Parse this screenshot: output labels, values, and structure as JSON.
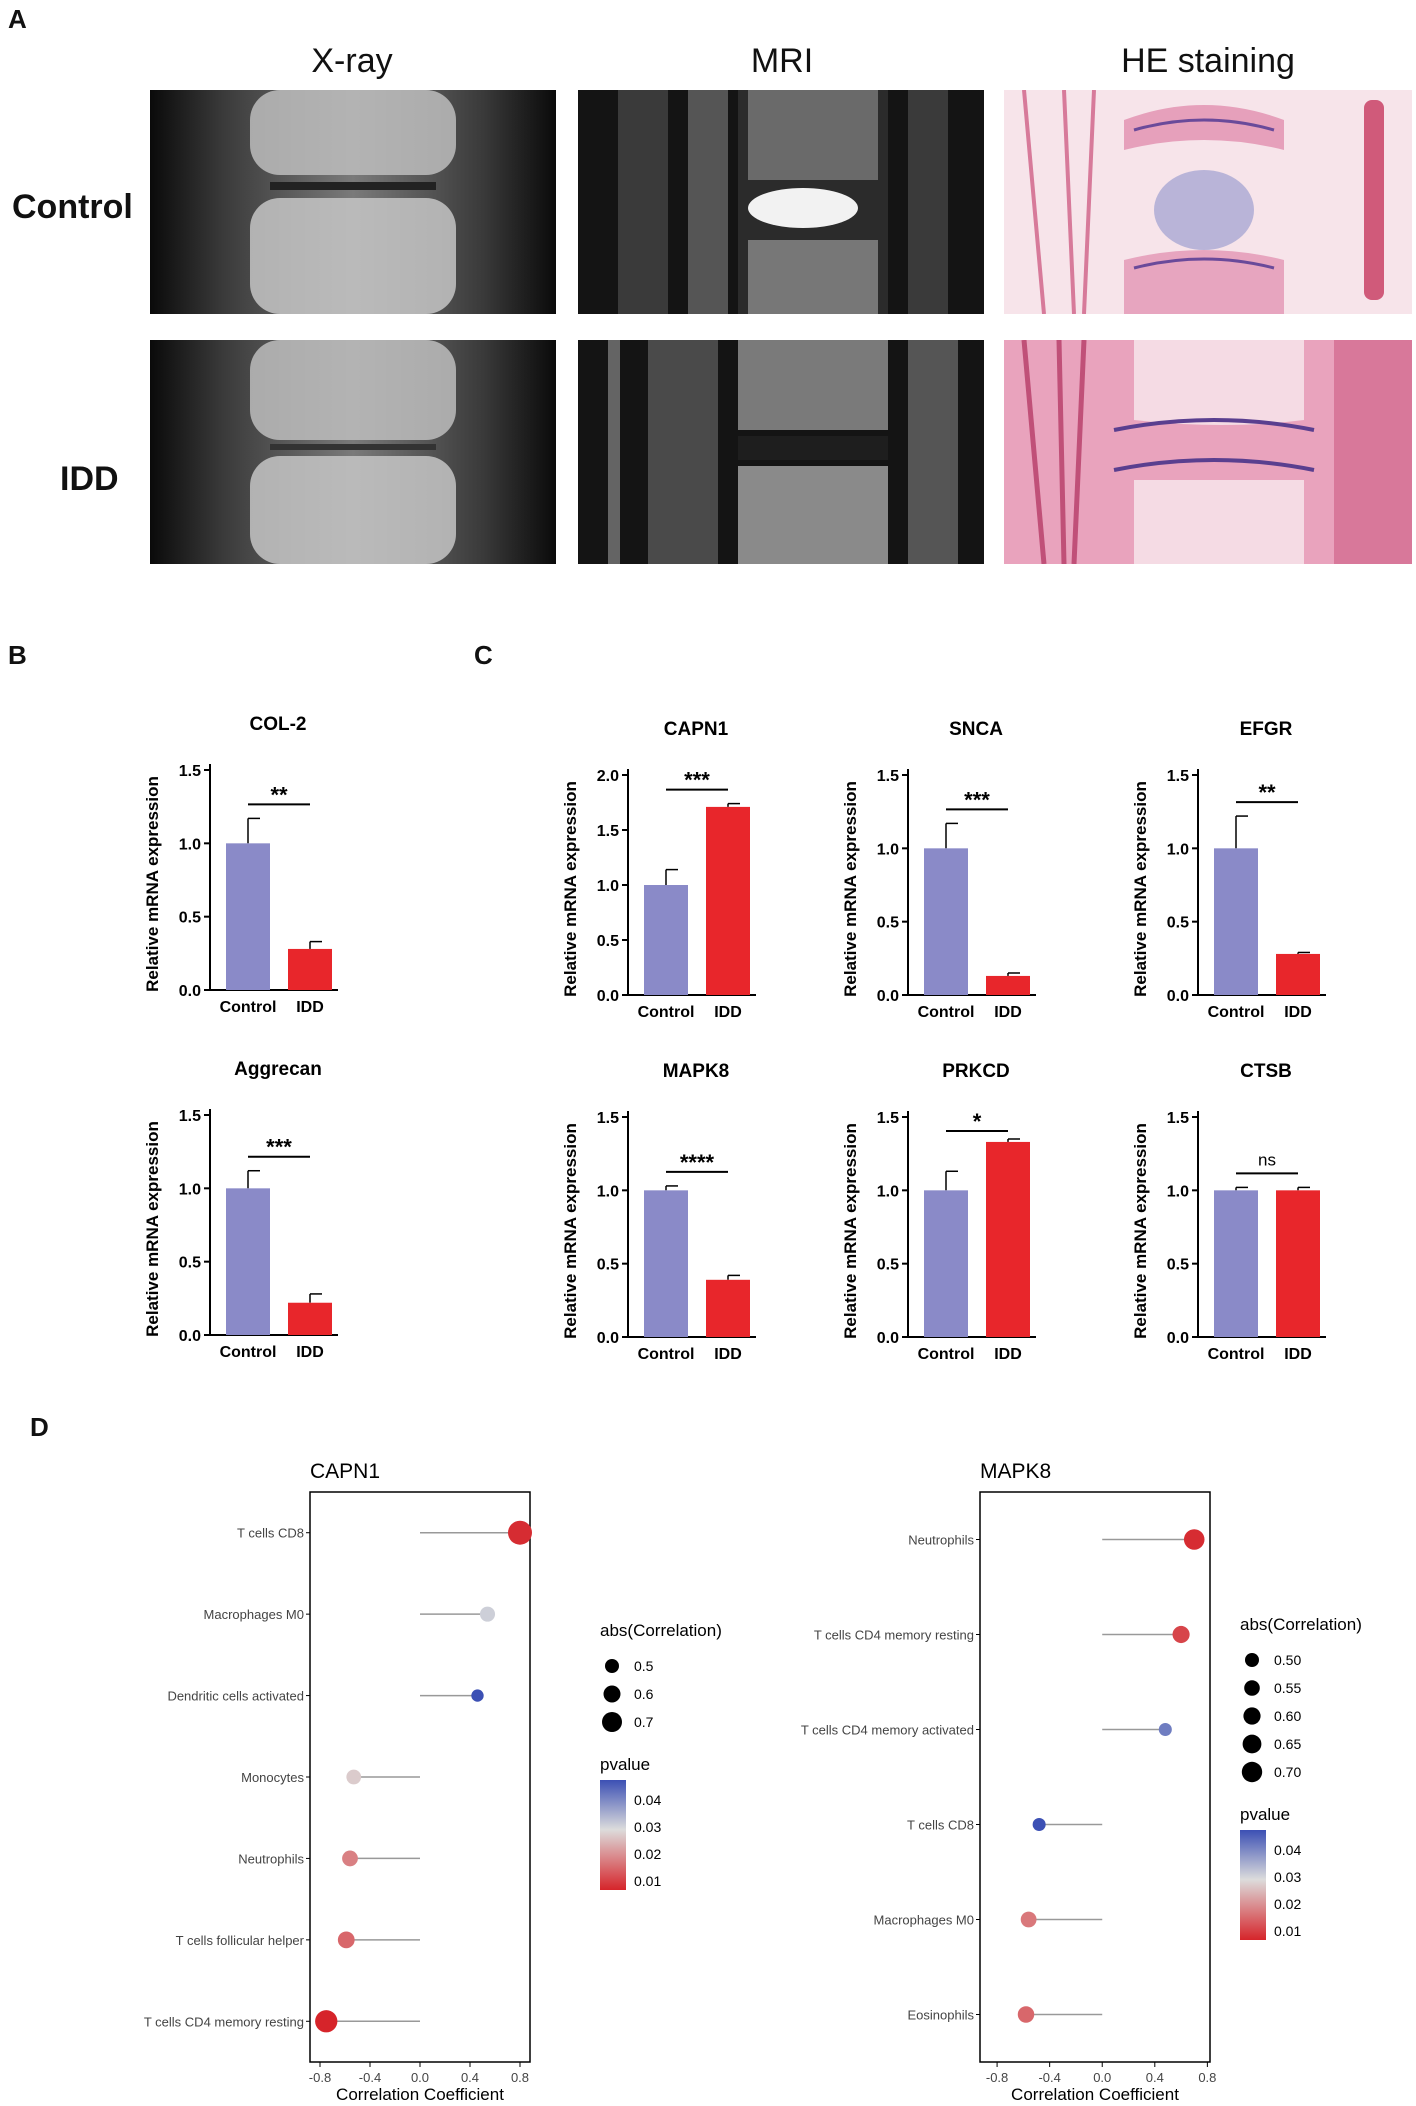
{
  "panel_letters": {
    "a": "A",
    "b": "B",
    "c": "C",
    "d": "D"
  },
  "panel_a": {
    "columns": [
      "X-ray",
      "MRI",
      "HE staining"
    ],
    "rows": [
      "Control",
      "IDD"
    ]
  },
  "chart_data": [
    {
      "type": "bar",
      "title": "COL-2",
      "categories": [
        "Control",
        "IDD"
      ],
      "values": [
        1.0,
        0.28
      ],
      "errors": [
        0.17,
        0.05
      ],
      "ylabel": "Relative mRNA expression",
      "ylim": [
        0,
        1.5
      ],
      "yticks": [
        "0.0",
        "0.5",
        "1.0",
        "1.5"
      ],
      "significance": "**",
      "colors": [
        "#8a8ac8",
        "#e8262b"
      ]
    },
    {
      "type": "bar",
      "title": "Aggrecan",
      "categories": [
        "Control",
        "IDD"
      ],
      "values": [
        1.0,
        0.22
      ],
      "errors": [
        0.12,
        0.06
      ],
      "ylabel": "Relative mRNA expression",
      "ylim": [
        0,
        1.5
      ],
      "yticks": [
        "0.0",
        "0.5",
        "1.0",
        "1.5"
      ],
      "significance": "***",
      "colors": [
        "#8a8ac8",
        "#e8262b"
      ]
    },
    {
      "type": "bar",
      "title": "CAPN1",
      "categories": [
        "Control",
        "IDD"
      ],
      "values": [
        1.0,
        1.71
      ],
      "errors": [
        0.14,
        0.03
      ],
      "ylabel": "Relative mRNA expression",
      "ylim": [
        0,
        2.0
      ],
      "yticks": [
        "0.0",
        "0.5",
        "1.0",
        "1.5",
        "2.0"
      ],
      "significance": "***",
      "colors": [
        "#8a8ac8",
        "#e8262b"
      ]
    },
    {
      "type": "bar",
      "title": "SNCA",
      "categories": [
        "Control",
        "IDD"
      ],
      "values": [
        1.0,
        0.13
      ],
      "errors": [
        0.17,
        0.02
      ],
      "ylabel": "Relative mRNA expression",
      "ylim": [
        0,
        1.5
      ],
      "yticks": [
        "0.0",
        "0.5",
        "1.0",
        "1.5"
      ],
      "significance": "***",
      "colors": [
        "#8a8ac8",
        "#e8262b"
      ]
    },
    {
      "type": "bar",
      "title": "EFGR",
      "categories": [
        "Control",
        "IDD"
      ],
      "values": [
        1.0,
        0.28
      ],
      "errors": [
        0.22,
        0.01
      ],
      "ylabel": "Relative mRNA expression",
      "ylim": [
        0,
        1.5
      ],
      "yticks": [
        "0.0",
        "0.5",
        "1.0",
        "1.5"
      ],
      "significance": "**",
      "colors": [
        "#8a8ac8",
        "#e8262b"
      ]
    },
    {
      "type": "bar",
      "title": "MAPK8",
      "categories": [
        "Control",
        "IDD"
      ],
      "values": [
        1.0,
        0.39
      ],
      "errors": [
        0.03,
        0.03
      ],
      "ylabel": "Relative mRNA expression",
      "ylim": [
        0,
        1.5
      ],
      "yticks": [
        "0.0",
        "0.5",
        "1.0",
        "1.5"
      ],
      "significance": "****",
      "colors": [
        "#8a8ac8",
        "#e8262b"
      ]
    },
    {
      "type": "bar",
      "title": "PRKCD",
      "categories": [
        "Control",
        "IDD"
      ],
      "values": [
        1.0,
        1.33
      ],
      "errors": [
        0.13,
        0.02
      ],
      "ylabel": "Relative mRNA expression",
      "ylim": [
        0,
        1.5
      ],
      "yticks": [
        "0.0",
        "0.5",
        "1.0",
        "1.5"
      ],
      "significance": "*",
      "colors": [
        "#8a8ac8",
        "#e8262b"
      ]
    },
    {
      "type": "bar",
      "title": "CTSB",
      "categories": [
        "Control",
        "IDD"
      ],
      "values": [
        1.0,
        1.0
      ],
      "errors": [
        0.02,
        0.02
      ],
      "ylabel": "Relative mRNA expression",
      "ylim": [
        0,
        1.5
      ],
      "yticks": [
        "0.0",
        "0.5",
        "1.0",
        "1.5"
      ],
      "significance": "ns",
      "colors": [
        "#8a8ac8",
        "#e8262b"
      ]
    },
    {
      "type": "lollipop",
      "title": "CAPN1",
      "xlabel": "Correlation Coefficient",
      "xlim": [
        -0.88,
        0.88
      ],
      "xticks": [
        -0.8,
        -0.4,
        0.0,
        0.4,
        0.8
      ],
      "categories": [
        "T cells CD8",
        "Macrophages M0",
        "Dendritic cells activated",
        "Monocytes",
        "Neutrophils",
        "T cells follicular helper",
        "T cells CD4 memory resting"
      ],
      "values": [
        0.8,
        0.54,
        0.46,
        -0.53,
        -0.56,
        -0.59,
        -0.75
      ],
      "pvalues": [
        0.002,
        0.025,
        0.045,
        0.021,
        0.012,
        0.009,
        0.001
      ],
      "size_legend": {
        "title": "abs(Correlation)",
        "labels": [
          "0.5",
          "0.6",
          "0.7"
        ]
      },
      "color_legend": {
        "title": "pvalue",
        "labels": [
          "0.04",
          "0.03",
          "0.02",
          "0.01"
        ]
      }
    },
    {
      "type": "lollipop",
      "title": "MAPK8",
      "xlabel": "Correlation Coefficient",
      "xlim": [
        -0.93,
        0.82
      ],
      "xticks": [
        -0.8,
        -0.4,
        0.0,
        0.4,
        0.8
      ],
      "categories": [
        "Neutrophils",
        "T cells CD4 memory resting",
        "T cells CD4 memory activated",
        "T cells CD8",
        "Macrophages M0",
        "Eosinophils"
      ],
      "values": [
        0.7,
        0.6,
        0.48,
        -0.48,
        -0.56,
        -0.58
      ],
      "pvalues": [
        0.002,
        0.005,
        0.038,
        0.045,
        0.011,
        0.009
      ],
      "size_legend": {
        "title": "abs(Correlation)",
        "labels": [
          "0.50",
          "0.55",
          "0.60",
          "0.65",
          "0.70"
        ]
      },
      "color_legend": {
        "title": "pvalue",
        "labels": [
          "0.04",
          "0.03",
          "0.02",
          "0.01"
        ]
      }
    }
  ]
}
